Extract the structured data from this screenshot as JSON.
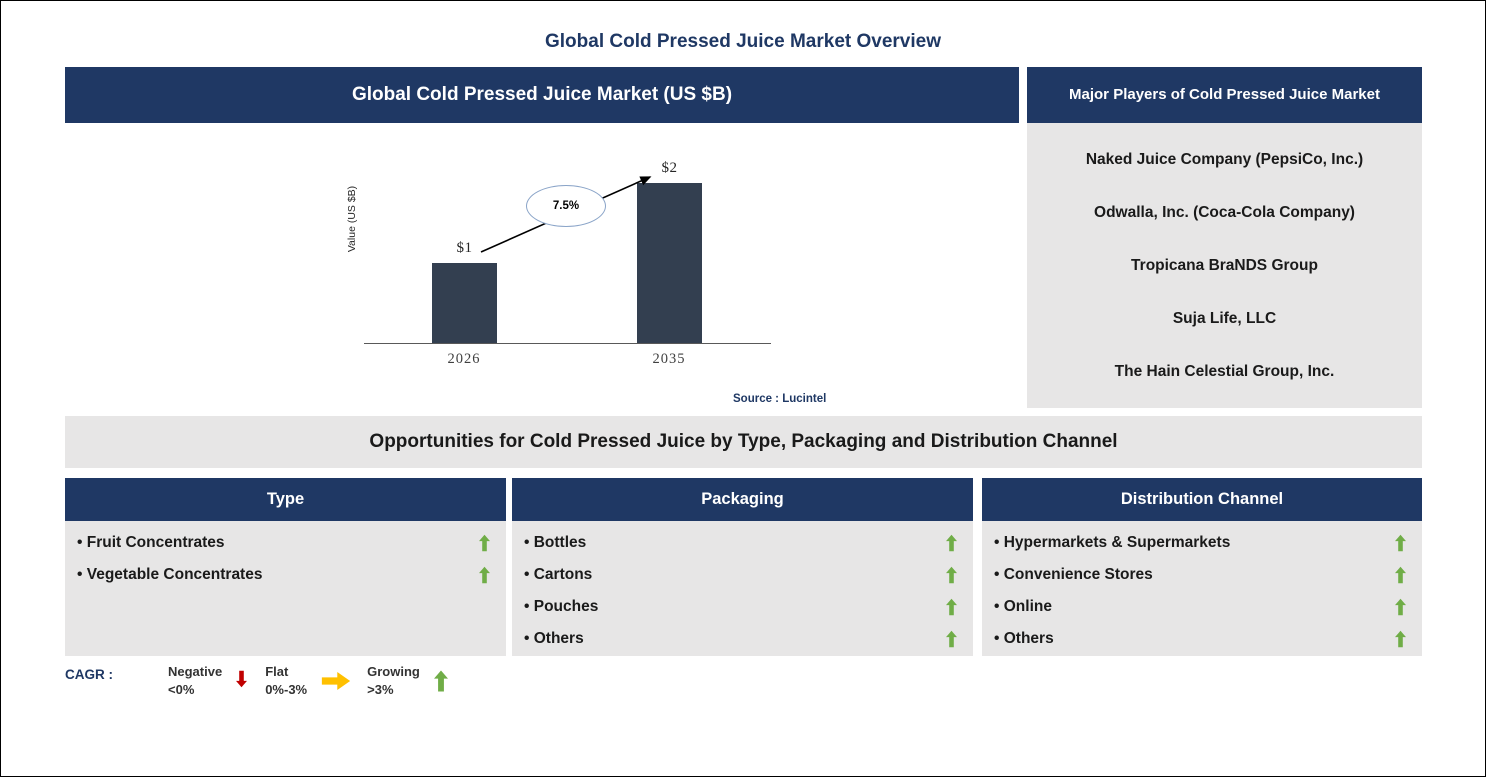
{
  "page": {
    "title": "Global Cold Pressed Juice Market Overview"
  },
  "chart_panel": {
    "header": "Global Cold Pressed Juice Market (US $B)",
    "source": "Source : Lucintel"
  },
  "chart_data": {
    "type": "bar",
    "categories": [
      "2026",
      "2035"
    ],
    "values": [
      1,
      2
    ],
    "bar_labels": [
      "$1",
      "$2"
    ],
    "cagr_label": "7.5%",
    "title": "Global Cold Pressed Juice Market (US $B)",
    "xlabel": "",
    "ylabel": "Value (US $B)",
    "ylim": [
      0,
      2.2
    ],
    "grid": false,
    "legend_position": "none",
    "bar_color": "#333F50"
  },
  "players_panel": {
    "header": "Major Players of Cold Pressed Juice Market",
    "items": [
      "Naked Juice Company (PepsiCo, Inc.)",
      "Odwalla, Inc. (Coca-Cola Company)",
      "Tropicana BraNDS Group",
      "Suja Life, LLC",
      "The Hain Celestial Group, Inc."
    ]
  },
  "opportunities": {
    "title": "Opportunities for Cold Pressed Juice by Type, Packaging and Distribution Channel",
    "columns": [
      {
        "header": "Type",
        "items": [
          {
            "label": "Fruit Concentrates",
            "trend": "growing"
          },
          {
            "label": "Vegetable Concentrates",
            "trend": "growing"
          }
        ]
      },
      {
        "header": "Packaging",
        "items": [
          {
            "label": "Bottles",
            "trend": "growing"
          },
          {
            "label": "Cartons",
            "trend": "growing"
          },
          {
            "label": "Pouches",
            "trend": "growing"
          },
          {
            "label": "Others",
            "trend": "growing"
          }
        ]
      },
      {
        "header": "Distribution Channel",
        "items": [
          {
            "label": "Hypermarkets & Supermarkets",
            "trend": "growing"
          },
          {
            "label": "Convenience Stores",
            "trend": "growing"
          },
          {
            "label": "Online",
            "trend": "growing"
          },
          {
            "label": "Others",
            "trend": "growing"
          }
        ]
      }
    ]
  },
  "legend": {
    "label": "CAGR :",
    "entries": [
      {
        "name": "Negative",
        "range": "<0%",
        "arrow": "down",
        "color": "#C00000"
      },
      {
        "name": "Flat",
        "range": "0%-3%",
        "arrow": "right",
        "color": "#FFC000"
      },
      {
        "name": "Growing",
        "range": ">3%",
        "arrow": "up",
        "color": "#70AD47"
      }
    ]
  },
  "colors": {
    "header_bg": "#1F3864",
    "title_navy": "#1F3864",
    "panel_bg": "#E7E6E6",
    "bar": "#333F50",
    "growing_green": "#70AD47",
    "flat_orange": "#FFC000",
    "negative_red": "#C00000"
  }
}
